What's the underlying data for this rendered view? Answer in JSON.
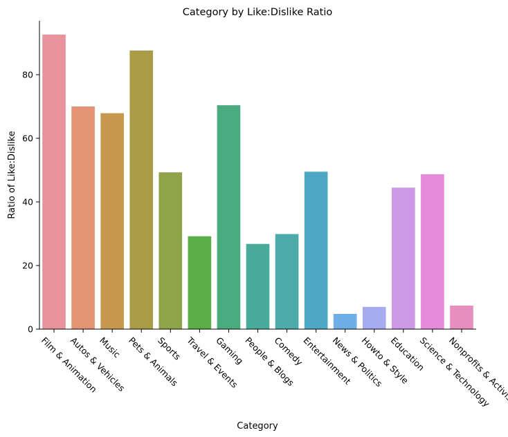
{
  "chart_data": {
    "type": "bar",
    "title": "Category by Like:Dislike Ratio",
    "xlabel": "Category",
    "ylabel": "Ratio of Like:Dislike",
    "ylim": [
      0,
      97
    ],
    "yticks": [
      0,
      20,
      40,
      60,
      80
    ],
    "grid": false,
    "legend": "none",
    "categories": [
      "Film & Animation",
      "Autos & Vehicles",
      "Music",
      "Pets & Animals",
      "Sports",
      "Travel & Events",
      "Gaming",
      "People & Blogs",
      "Comedy",
      "Entertainment",
      "News & Politics",
      "Howto & Style",
      "Education",
      "Science & Technology",
      "Nonprofits & Activism"
    ],
    "values": [
      92.6,
      70.0,
      67.9,
      87.6,
      49.3,
      29.2,
      70.4,
      26.8,
      29.9,
      49.5,
      4.8,
      7.0,
      44.5,
      48.7,
      7.4
    ],
    "colors": [
      "#e8939b",
      "#e39474",
      "#c6994e",
      "#aa9b47",
      "#8fa348",
      "#5aad48",
      "#4aac7e",
      "#49ab99",
      "#4caaab",
      "#4ea8c4",
      "#6daee6",
      "#a6aaef",
      "#cd99e7",
      "#e68adb",
      "#e68fbf"
    ]
  }
}
